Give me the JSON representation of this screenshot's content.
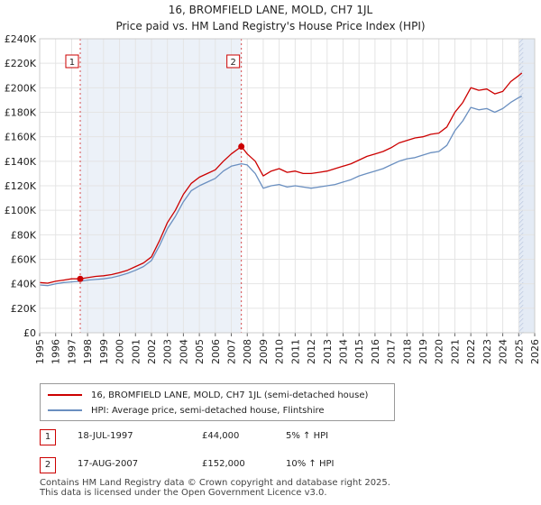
{
  "title": "16, BROMFIELD LANE, MOLD, CH7 1JL",
  "subtitle": "Price paid vs. HM Land Registry's House Price Index (HPI)",
  "colors": {
    "property": "#cc0000",
    "hpi": "#6a8fc0",
    "shade": "#dde6f2"
  },
  "chart_data": {
    "type": "line",
    "xlim": [
      1995,
      2026
    ],
    "ylim": [
      0,
      240000
    ],
    "x_ticks": [
      "1995",
      "1996",
      "1997",
      "1998",
      "1999",
      "2000",
      "2001",
      "2002",
      "2003",
      "2004",
      "2005",
      "2006",
      "2007",
      "2008",
      "2009",
      "2010",
      "2011",
      "2012",
      "2013",
      "2014",
      "2015",
      "2016",
      "2017",
      "2018",
      "2019",
      "2020",
      "2021",
      "2022",
      "2023",
      "2024",
      "2025",
      "2026"
    ],
    "y_ticks": [
      {
        "value": 0,
        "label": "£0"
      },
      {
        "value": 20000,
        "label": "£20K"
      },
      {
        "value": 40000,
        "label": "£40K"
      },
      {
        "value": 60000,
        "label": "£60K"
      },
      {
        "value": 80000,
        "label": "£80K"
      },
      {
        "value": 100000,
        "label": "£100K"
      },
      {
        "value": 120000,
        "label": "£120K"
      },
      {
        "value": 140000,
        "label": "£140K"
      },
      {
        "value": 160000,
        "label": "£160K"
      },
      {
        "value": 180000,
        "label": "£180K"
      },
      {
        "value": 200000,
        "label": "£200K"
      },
      {
        "value": 220000,
        "label": "£220K"
      },
      {
        "value": 240000,
        "label": "£240K"
      }
    ],
    "shaded_ranges": [
      [
        1997.54,
        2007.63
      ],
      [
        2025.0,
        2026.0
      ]
    ],
    "series": [
      {
        "name": "16, BROMFIELD LANE, MOLD, CH7 1JL (semi-detached house)",
        "x": [
          1995.0,
          1995.5,
          1996.0,
          1996.5,
          1997.0,
          1997.54,
          1998.0,
          1998.5,
          1999.0,
          1999.5,
          2000.0,
          2000.5,
          2001.0,
          2001.5,
          2002.0,
          2002.5,
          2003.0,
          2003.5,
          2004.0,
          2004.5,
          2005.0,
          2005.5,
          2006.0,
          2006.5,
          2007.0,
          2007.63,
          2008.0,
          2008.5,
          2009.0,
          2009.5,
          2010.0,
          2010.5,
          2011.0,
          2011.5,
          2012.0,
          2012.5,
          2013.0,
          2013.5,
          2014.0,
          2014.5,
          2015.0,
          2015.5,
          2016.0,
          2016.5,
          2017.0,
          2017.5,
          2018.0,
          2018.5,
          2019.0,
          2019.5,
          2020.0,
          2020.5,
          2021.0,
          2021.5,
          2022.0,
          2022.5,
          2023.0,
          2023.5,
          2024.0,
          2024.5,
          2025.0,
          2025.2
        ],
        "values": [
          41000,
          40500,
          42000,
          43000,
          44000,
          44000,
          45000,
          46000,
          46500,
          47500,
          49000,
          51000,
          54000,
          57000,
          62000,
          75000,
          90000,
          100000,
          113000,
          122000,
          127000,
          130000,
          133000,
          140000,
          146000,
          152000,
          146000,
          140000,
          128000,
          132000,
          134000,
          131000,
          132000,
          130000,
          130000,
          131000,
          132000,
          134000,
          136000,
          138000,
          141000,
          144000,
          146000,
          148000,
          151000,
          155000,
          157000,
          159000,
          160000,
          162000,
          163000,
          168000,
          180000,
          188000,
          200000,
          198000,
          199000,
          195000,
          197000,
          205000,
          210000,
          212000
        ]
      },
      {
        "name": "HPI: Average price, semi-detached house, Flintshire",
        "x": [
          1995.0,
          1995.5,
          1996.0,
          1996.5,
          1997.0,
          1997.54,
          1998.0,
          1998.5,
          1999.0,
          1999.5,
          2000.0,
          2000.5,
          2001.0,
          2001.5,
          2002.0,
          2002.5,
          2003.0,
          2003.5,
          2004.0,
          2004.5,
          2005.0,
          2005.5,
          2006.0,
          2006.5,
          2007.0,
          2007.63,
          2008.0,
          2008.5,
          2009.0,
          2009.5,
          2010.0,
          2010.5,
          2011.0,
          2011.5,
          2012.0,
          2012.5,
          2013.0,
          2013.5,
          2014.0,
          2014.5,
          2015.0,
          2015.5,
          2016.0,
          2016.5,
          2017.0,
          2017.5,
          2018.0,
          2018.5,
          2019.0,
          2019.5,
          2020.0,
          2020.5,
          2021.0,
          2021.5,
          2022.0,
          2022.5,
          2023.0,
          2023.5,
          2024.0,
          2024.5,
          2025.0,
          2025.2
        ],
        "values": [
          39000,
          38500,
          40000,
          41000,
          41500,
          42000,
          43000,
          43500,
          44000,
          45000,
          46500,
          48500,
          51000,
          54000,
          59000,
          71000,
          85000,
          95000,
          107000,
          116000,
          120000,
          123000,
          126000,
          132000,
          136000,
          138000,
          137000,
          130000,
          118000,
          120000,
          121000,
          119000,
          120000,
          119000,
          118000,
          119000,
          120000,
          121000,
          123000,
          125000,
          128000,
          130000,
          132000,
          134000,
          137000,
          140000,
          142000,
          143000,
          145000,
          147000,
          148000,
          153000,
          165000,
          173000,
          184000,
          182000,
          183000,
          180000,
          183000,
          188000,
          192000,
          193000
        ]
      }
    ],
    "sales": [
      {
        "id": "1",
        "x": 1997.54,
        "value": 44000
      },
      {
        "id": "2",
        "x": 2007.63,
        "value": 152000
      }
    ]
  },
  "legend": {
    "property_label": "16, BROMFIELD LANE, MOLD, CH7 1JL (semi-detached house)",
    "hpi_label": "HPI: Average price, semi-detached house, Flintshire"
  },
  "sales_table": [
    {
      "id": "1",
      "date": "18-JUL-1997",
      "price": "£44,000",
      "hpi": "5% ↑ HPI"
    },
    {
      "id": "2",
      "date": "17-AUG-2007",
      "price": "£152,000",
      "hpi": "10% ↑ HPI"
    }
  ],
  "footer": {
    "line1": "Contains HM Land Registry data © Crown copyright and database right 2025.",
    "line2": "This data is licensed under the Open Government Licence v3.0."
  }
}
